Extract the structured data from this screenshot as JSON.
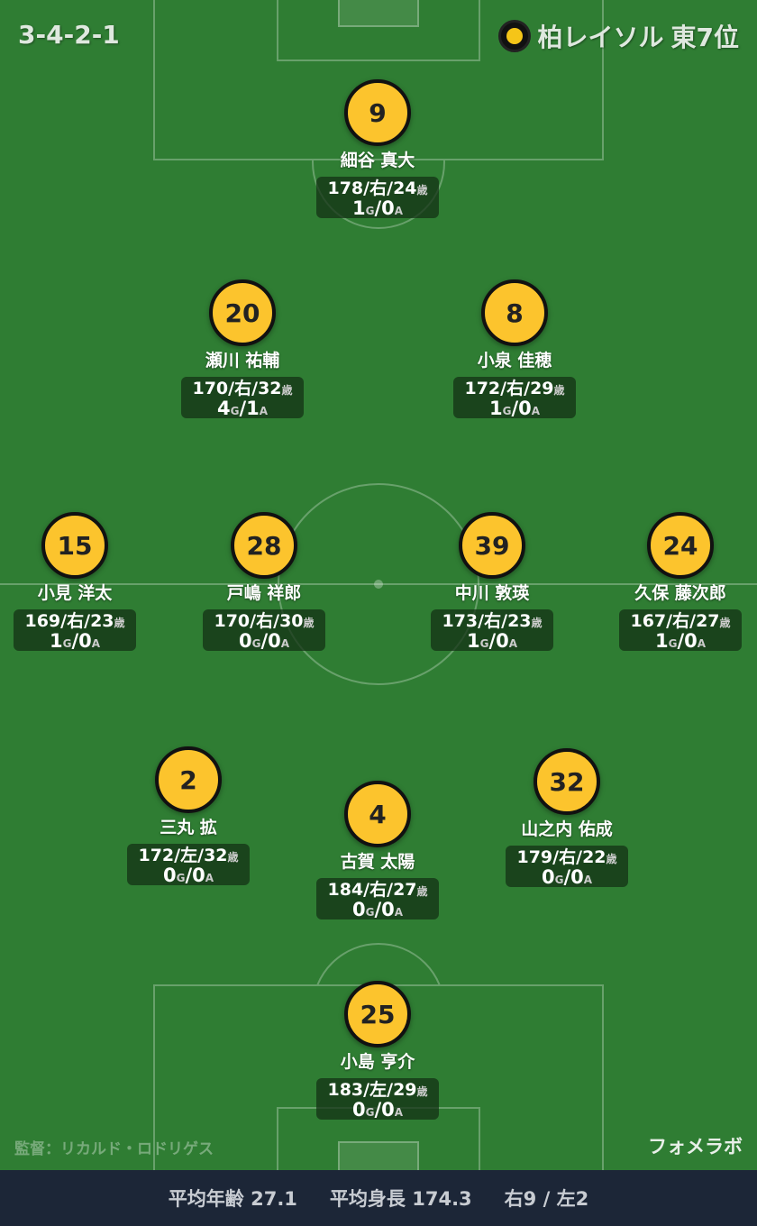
{
  "formation": "3-4-2-1",
  "team": {
    "name": "柏レイソル",
    "rank": "東7位",
    "crest_icon": "kashiwa-reysol-crest"
  },
  "colors": {
    "pitch": "#2f7d33",
    "player_circle": "#fcc42d",
    "footer": "#1c2637"
  },
  "players": [
    {
      "number": "9",
      "name": "細谷 真大",
      "height": "178",
      "foot": "右",
      "age": "24",
      "goals": "1",
      "assists": "0"
    },
    {
      "number": "20",
      "name": "瀬川 祐輔",
      "height": "170",
      "foot": "右",
      "age": "32",
      "goals": "4",
      "assists": "1"
    },
    {
      "number": "8",
      "name": "小泉 佳穂",
      "height": "172",
      "foot": "右",
      "age": "29",
      "goals": "1",
      "assists": "0"
    },
    {
      "number": "15",
      "name": "小見 洋太",
      "height": "169",
      "foot": "右",
      "age": "23",
      "goals": "1",
      "assists": "0"
    },
    {
      "number": "28",
      "name": "戸嶋 祥郎",
      "height": "170",
      "foot": "右",
      "age": "30",
      "goals": "0",
      "assists": "0"
    },
    {
      "number": "39",
      "name": "中川 敦瑛",
      "height": "173",
      "foot": "右",
      "age": "23",
      "goals": "1",
      "assists": "0"
    },
    {
      "number": "24",
      "name": "久保 藤次郎",
      "height": "167",
      "foot": "右",
      "age": "27",
      "goals": "1",
      "assists": "0"
    },
    {
      "number": "2",
      "name": "三丸 拡",
      "height": "172",
      "foot": "左",
      "age": "32",
      "goals": "0",
      "assists": "0"
    },
    {
      "number": "4",
      "name": "古賀 太陽",
      "height": "184",
      "foot": "右",
      "age": "27",
      "goals": "0",
      "assists": "0"
    },
    {
      "number": "32",
      "name": "山之内 佑成",
      "height": "179",
      "foot": "右",
      "age": "22",
      "goals": "0",
      "assists": "0"
    },
    {
      "number": "25",
      "name": "小島 亨介",
      "height": "183",
      "foot": "左",
      "age": "29",
      "goals": "0",
      "assists": "0"
    }
  ],
  "labels": {
    "age_unit": "歳",
    "goal_unit": "G",
    "assist_unit": "A"
  },
  "coach": "監督：リカルド・ロドリゲス",
  "brand": "フォメラボ",
  "footer": {
    "avg_age": "平均年齢 27.1",
    "avg_height": "平均身長 174.3",
    "foot_split": "右9 / 左2"
  }
}
